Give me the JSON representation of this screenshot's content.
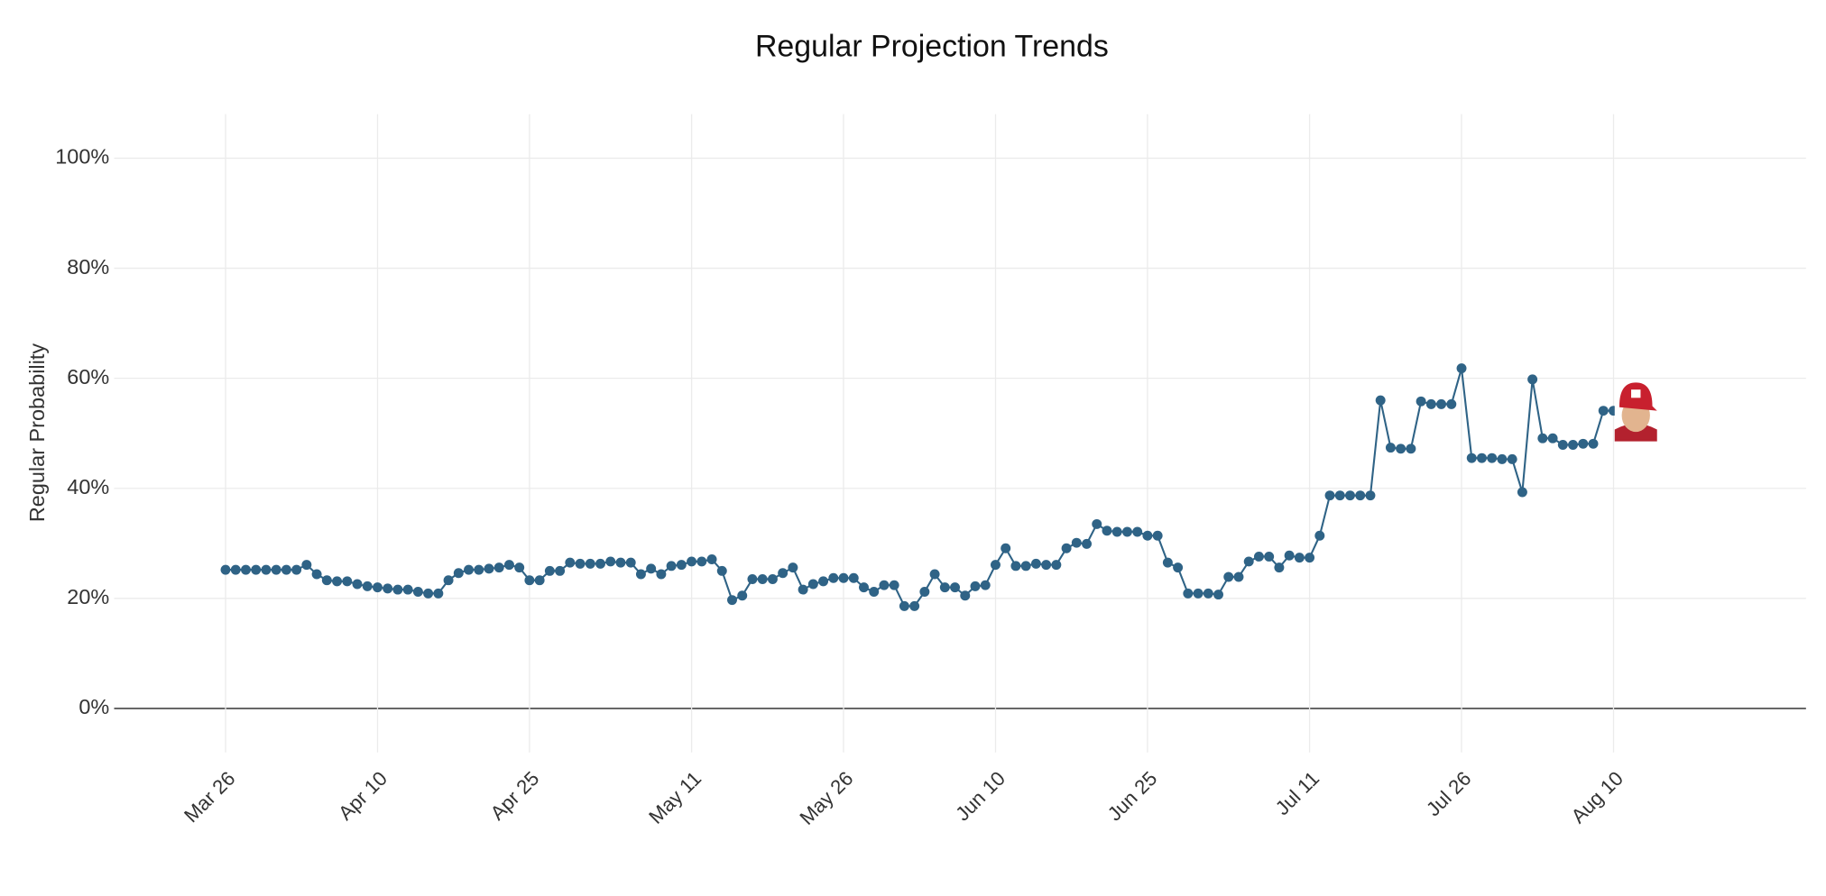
{
  "chart_data": {
    "type": "line",
    "title": "Regular Projection Trends",
    "y_label": "Regular Probability",
    "x": [
      "Mar 26",
      "Mar 27",
      "Mar 28",
      "Mar 29",
      "Mar 30",
      "Mar 31",
      "Apr 1",
      "Apr 2",
      "Apr 3",
      "Apr 4",
      "Apr 5",
      "Apr 6",
      "Apr 7",
      "Apr 8",
      "Apr 9",
      "Apr 10",
      "Apr 11",
      "Apr 12",
      "Apr 13",
      "Apr 14",
      "Apr 15",
      "Apr 16",
      "Apr 17",
      "Apr 18",
      "Apr 19",
      "Apr 20",
      "Apr 21",
      "Apr 22",
      "Apr 23",
      "Apr 24",
      "Apr 25",
      "Apr 26",
      "Apr 27",
      "Apr 28",
      "Apr 29",
      "Apr 30",
      "May 1",
      "May 2",
      "May 3",
      "May 4",
      "May 5",
      "May 6",
      "May 7",
      "May 8",
      "May 9",
      "May 10",
      "May 11",
      "May 12",
      "May 13",
      "May 14",
      "May 15",
      "May 16",
      "May 17",
      "May 18",
      "May 19",
      "May 20",
      "May 21",
      "May 22",
      "May 23",
      "May 24",
      "May 25",
      "May 26",
      "May 27",
      "May 28",
      "May 29",
      "May 30",
      "May 31",
      "Jun 1",
      "Jun 2",
      "Jun 3",
      "Jun 4",
      "Jun 5",
      "Jun 6",
      "Jun 7",
      "Jun 8",
      "Jun 9",
      "Jun 10",
      "Jun 11",
      "Jun 12",
      "Jun 13",
      "Jun 14",
      "Jun 15",
      "Jun 16",
      "Jun 17",
      "Jun 18",
      "Jun 19",
      "Jun 20",
      "Jun 21",
      "Jun 22",
      "Jun 23",
      "Jun 24",
      "Jun 25",
      "Jun 26",
      "Jun 27",
      "Jun 28",
      "Jun 29",
      "Jun 30",
      "Jul 1",
      "Jul 2",
      "Jul 3",
      "Jul 4",
      "Jul 5",
      "Jul 6",
      "Jul 7",
      "Jul 8",
      "Jul 9",
      "Jul 10",
      "Jul 11",
      "Jul 12",
      "Jul 13",
      "Jul 14",
      "Jul 15",
      "Jul 16",
      "Jul 17",
      "Jul 18",
      "Jul 19",
      "Jul 20",
      "Jul 21",
      "Jul 22",
      "Jul 23",
      "Jul 24",
      "Jul 25",
      "Jul 26",
      "Jul 27",
      "Jul 28",
      "Jul 29",
      "Jul 30",
      "Jul 31",
      "Aug 1",
      "Aug 2",
      "Aug 3",
      "Aug 4",
      "Aug 5",
      "Aug 6",
      "Aug 7",
      "Aug 8",
      "Aug 9",
      "Aug 10"
    ],
    "series": [
      {
        "name": "Regular Probability",
        "color": "#2f6386",
        "values": [
          25.2,
          25.2,
          25.2,
          25.2,
          25.2,
          25.2,
          25.2,
          25.2,
          26.1,
          24.4,
          23.3,
          23.1,
          23.1,
          22.6,
          22.2,
          22.0,
          21.8,
          21.6,
          21.6,
          21.2,
          20.9,
          20.9,
          23.3,
          24.6,
          25.2,
          25.2,
          25.4,
          25.6,
          26.1,
          25.6,
          23.3,
          23.3,
          25.0,
          25.0,
          26.5,
          26.3,
          26.3,
          26.3,
          26.7,
          26.5,
          26.5,
          24.4,
          25.4,
          24.4,
          25.9,
          26.1,
          26.7,
          26.7,
          27.1,
          25.0,
          19.7,
          20.5,
          23.5,
          23.5,
          23.5,
          24.6,
          25.6,
          21.6,
          22.6,
          23.1,
          23.7,
          23.7,
          23.7,
          22.0,
          21.2,
          22.4,
          22.4,
          18.6,
          18.6,
          21.2,
          24.4,
          22.0,
          22.0,
          20.5,
          22.2,
          22.4,
          26.1,
          29.1,
          25.9,
          25.9,
          26.3,
          26.1,
          26.1,
          29.1,
          30.1,
          29.9,
          33.5,
          32.3,
          32.1,
          32.1,
          32.1,
          31.4,
          31.4,
          26.5,
          25.6,
          20.9,
          20.9,
          20.9,
          20.7,
          23.9,
          23.9,
          26.7,
          27.6,
          27.6,
          25.6,
          27.8,
          27.4,
          27.4,
          31.4,
          38.7,
          38.7,
          38.7,
          38.7,
          38.7,
          56.0,
          47.4,
          47.2,
          47.2,
          55.8,
          55.3,
          55.3,
          55.3,
          61.8,
          45.5,
          45.5,
          45.5,
          45.3,
          45.3,
          39.3,
          59.8,
          49.1,
          49.1,
          47.9,
          47.9,
          48.1,
          48.1,
          54.1,
          54.1
        ]
      }
    ],
    "xlim": [
      "Mar 15",
      "Aug 29"
    ],
    "xticks": [
      "Mar 26",
      "Apr 10",
      "Apr 25",
      "May 11",
      "May 26",
      "Jun 10",
      "Jun 25",
      "Jul 11",
      "Jul 26",
      "Aug 10"
    ],
    "ylim": [
      -8,
      108
    ],
    "yticks": [
      {
        "value": 0,
        "label": "0%"
      },
      {
        "value": 20,
        "label": "20%"
      },
      {
        "value": 40,
        "label": "40%"
      },
      {
        "value": 60,
        "label": "60%"
      },
      {
        "value": 80,
        "label": "80%"
      },
      {
        "value": 100,
        "label": "100%"
      }
    ],
    "grid": true
  }
}
